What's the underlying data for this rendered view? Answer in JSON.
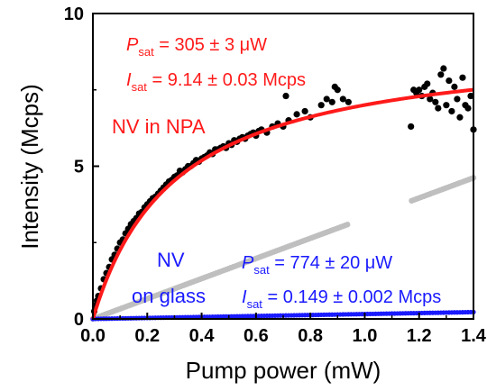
{
  "chart_data": {
    "type": "scatter",
    "xlabel": "Pump power (mW)",
    "ylabel": "Intensity (Mcps)",
    "xlim": [
      0,
      1.4
    ],
    "ylim": [
      0,
      10
    ],
    "xticks": [
      "0.0",
      "0.2",
      "0.4",
      "0.6",
      "0.8",
      "1.0",
      "1.2",
      "1.4"
    ],
    "yticks": [
      "0",
      "5",
      "10"
    ],
    "grid": false,
    "series": [
      {
        "kind": "points",
        "color": "#000000",
        "points": [
          [
            0.005,
            0.25
          ],
          [
            0.01,
            0.45
          ],
          [
            0.015,
            0.6
          ],
          [
            0.02,
            0.75
          ],
          [
            0.03,
            1.0
          ],
          [
            0.04,
            1.3
          ],
          [
            0.05,
            1.5
          ],
          [
            0.06,
            1.7
          ],
          [
            0.07,
            1.95
          ],
          [
            0.08,
            2.1
          ],
          [
            0.09,
            2.3
          ],
          [
            0.1,
            2.5
          ],
          [
            0.11,
            2.6
          ],
          [
            0.12,
            2.8
          ],
          [
            0.13,
            2.95
          ],
          [
            0.14,
            3.1
          ],
          [
            0.15,
            3.2
          ],
          [
            0.16,
            3.3
          ],
          [
            0.17,
            3.45
          ],
          [
            0.18,
            3.5
          ],
          [
            0.19,
            3.65
          ],
          [
            0.2,
            3.75
          ],
          [
            0.21,
            3.85
          ],
          [
            0.22,
            3.95
          ],
          [
            0.23,
            4.0
          ],
          [
            0.24,
            4.1
          ],
          [
            0.25,
            4.2
          ],
          [
            0.26,
            4.3
          ],
          [
            0.27,
            4.4
          ],
          [
            0.28,
            4.5
          ],
          [
            0.29,
            4.55
          ],
          [
            0.3,
            4.65
          ],
          [
            0.31,
            4.7
          ],
          [
            0.32,
            4.85
          ],
          [
            0.33,
            4.8
          ],
          [
            0.34,
            4.9
          ],
          [
            0.35,
            5.0
          ],
          [
            0.36,
            5.0
          ],
          [
            0.37,
            5.1
          ],
          [
            0.38,
            5.2
          ],
          [
            0.39,
            5.15
          ],
          [
            0.4,
            5.25
          ],
          [
            0.41,
            5.3
          ],
          [
            0.42,
            5.35
          ],
          [
            0.43,
            5.45
          ],
          [
            0.44,
            5.4
          ],
          [
            0.45,
            5.55
          ],
          [
            0.46,
            5.55
          ],
          [
            0.47,
            5.6
          ],
          [
            0.48,
            5.65
          ],
          [
            0.49,
            5.6
          ],
          [
            0.5,
            5.75
          ],
          [
            0.51,
            5.7
          ],
          [
            0.52,
            5.85
          ],
          [
            0.53,
            5.8
          ],
          [
            0.54,
            5.9
          ],
          [
            0.55,
            5.95
          ],
          [
            0.56,
            5.9
          ],
          [
            0.57,
            6.0
          ],
          [
            0.58,
            6.05
          ],
          [
            0.59,
            6.1
          ],
          [
            0.6,
            6.0
          ],
          [
            0.61,
            6.15
          ],
          [
            0.62,
            6.2
          ],
          [
            0.64,
            6.1
          ],
          [
            0.66,
            6.3
          ],
          [
            0.68,
            6.4
          ],
          [
            0.7,
            6.3
          ],
          [
            0.71,
            7.3
          ],
          [
            0.72,
            6.5
          ],
          [
            0.75,
            6.7
          ],
          [
            0.78,
            6.8
          ],
          [
            0.8,
            6.6
          ],
          [
            0.84,
            7.0
          ],
          [
            0.86,
            7.2
          ],
          [
            0.88,
            7.1
          ],
          [
            0.89,
            7.6
          ],
          [
            0.9,
            7.5
          ],
          [
            0.92,
            7.2
          ],
          [
            0.94,
            7.1
          ],
          [
            1.17,
            6.3
          ],
          [
            1.18,
            7.5
          ],
          [
            1.19,
            7.4
          ],
          [
            1.2,
            7.5
          ],
          [
            1.21,
            7.3
          ],
          [
            1.22,
            7.6
          ],
          [
            1.23,
            7.7
          ],
          [
            1.24,
            7.2
          ],
          [
            1.25,
            7.4
          ],
          [
            1.26,
            7.1
          ],
          [
            1.27,
            6.9
          ],
          [
            1.28,
            8.0
          ],
          [
            1.29,
            8.2
          ],
          [
            1.3,
            7.0
          ],
          [
            1.31,
            7.8
          ],
          [
            1.32,
            6.8
          ],
          [
            1.33,
            7.6
          ],
          [
            1.34,
            7.2
          ],
          [
            1.35,
            6.6
          ],
          [
            1.36,
            7.9
          ],
          [
            1.37,
            7.0
          ],
          [
            1.38,
            6.9
          ],
          [
            1.39,
            7.3
          ],
          [
            1.4,
            6.2
          ]
        ]
      },
      {
        "kind": "linear",
        "color": "#bfbfbf",
        "x_start": 0.0,
        "x_end": 1.4,
        "slope": 3.3,
        "gaps": [
          [
            0.94,
            1.17
          ]
        ]
      },
      {
        "kind": "linear",
        "color": "#1a1aff",
        "x_start": 0.0,
        "x_end": 1.4,
        "slope": 0.16
      },
      {
        "kind": "saturation-fit",
        "color": "#ff1a1a",
        "i_sat": 9.14,
        "p_sat": 0.305
      }
    ],
    "annotations": {
      "nv_npa": "NV in NPA",
      "p_sat_symbol": "P",
      "p_sat_sub": "sat",
      "i_sat_symbol": "I",
      "i_sat_sub": "sat",
      "npa_psat": " = 305 ± 3 μW",
      "npa_isat": " = 9.14 ± 0.03 Mcps",
      "nv_glass_1": "NV",
      "nv_glass_2": "on glass",
      "glass_psat": " = 774 ± 20 μW",
      "glass_isat": " = 0.149 ± 0.002 Mcps",
      "red": "#ff1a1a",
      "blue": "#1a1aff"
    }
  }
}
